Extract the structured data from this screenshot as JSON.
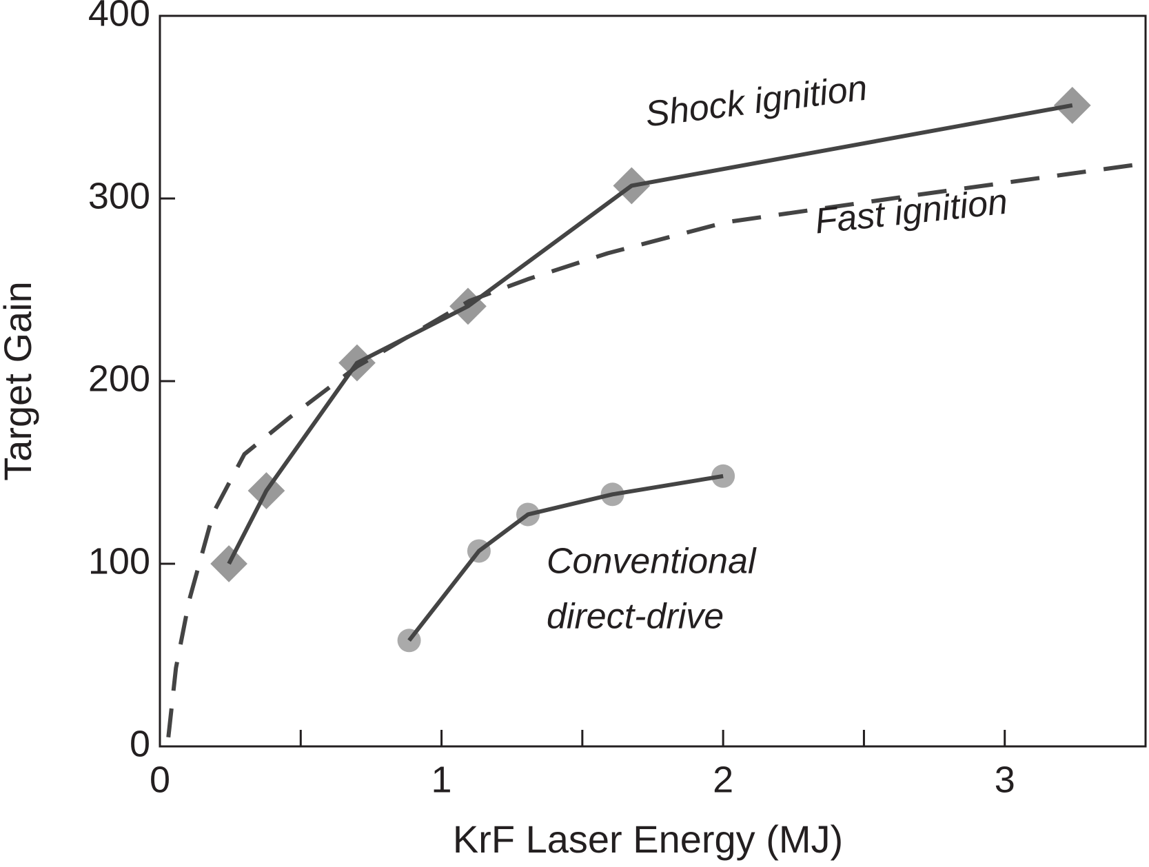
{
  "chart_data": {
    "type": "line",
    "x_label": "KrF Laser Energy (MJ)",
    "y_label": "Target Gain",
    "xlim": [
      0,
      3.5
    ],
    "ylim": [
      0,
      400
    ],
    "xticks": [
      0,
      1,
      2,
      3
    ],
    "xminor_ticks": [
      0.5,
      1.5,
      2.5
    ],
    "yticks": [
      0,
      100,
      200,
      300,
      400
    ],
    "series": [
      {
        "name": "Shock ignition",
        "color": "#444444",
        "marker": "diamond",
        "marker_color": "#999999",
        "dash": false,
        "x": [
          0.245,
          0.378,
          0.7,
          1.094,
          1.675,
          3.24
        ],
        "values": [
          100,
          140,
          210,
          241,
          307,
          351
        ]
      },
      {
        "name": "Fast ignition",
        "color": "#444444",
        "marker": "none",
        "dash": true,
        "x": [
          0.03,
          0.057,
          0.104,
          0.19,
          0.3,
          0.46,
          0.7,
          1.1,
          1.31,
          1.59,
          2.01,
          2.69,
          3.49
        ],
        "values": [
          5,
          43,
          80,
          128,
          160,
          180,
          208,
          244,
          256,
          270,
          287,
          302,
          319
        ]
      },
      {
        "name": "Conventional direct-drive",
        "color": "#444444",
        "marker": "circle",
        "marker_color": "#aaaaaa",
        "dash": false,
        "x": [
          0.885,
          1.133,
          1.307,
          1.607,
          2.0
        ],
        "values": [
          58,
          107,
          127,
          138,
          148
        ]
      }
    ],
    "annotations": [
      "Shock ignition",
      "Fast ignition",
      "Conventional",
      "direct-drive"
    ]
  }
}
